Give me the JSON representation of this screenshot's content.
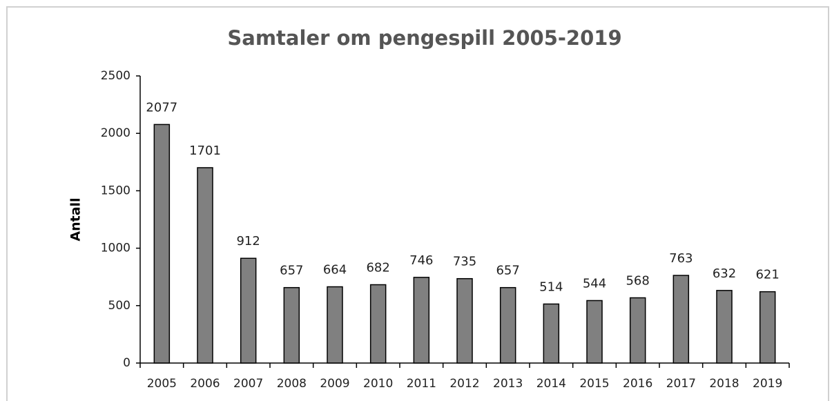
{
  "chart_data": {
    "type": "bar",
    "title": "Samtaler om pengespill 2005-2019",
    "y_label": "Antall",
    "categories": [
      "2005",
      "2006",
      "2007",
      "2008",
      "2009",
      "2010",
      "2011",
      "2012",
      "2013",
      "2014",
      "2015",
      "2016",
      "2017",
      "2018",
      "2019"
    ],
    "values": [
      2077,
      1701,
      912,
      657,
      664,
      682,
      746,
      735,
      657,
      514,
      544,
      568,
      763,
      632,
      621
    ],
    "color": "#808080",
    "ylim": [
      0,
      2500
    ],
    "yticks": [
      0,
      500,
      1000,
      1500,
      2000,
      2500
    ],
    "grid": false
  }
}
